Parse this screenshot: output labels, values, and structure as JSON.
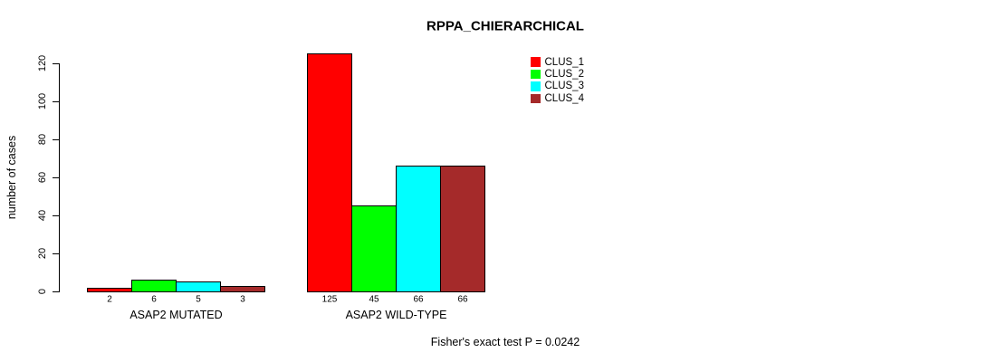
{
  "chart_data": {
    "type": "bar",
    "title": "RPPA_CHIERARCHICAL",
    "ylabel": "number of cases",
    "xlabel": "",
    "ylim": [
      0,
      125
    ],
    "yticks": [
      0,
      20,
      40,
      60,
      80,
      100,
      120
    ],
    "grid": false,
    "legend_position": "top-right",
    "categories": [
      "ASAP2 MUTATED",
      "ASAP2 WILD-TYPE"
    ],
    "series": [
      {
        "name": "CLUS_1",
        "color": "#ff0000",
        "values": [
          2,
          125
        ]
      },
      {
        "name": "CLUS_2",
        "color": "#00ff00",
        "values": [
          6,
          45
        ]
      },
      {
        "name": "CLUS_3",
        "color": "#00ffff",
        "values": [
          5,
          66
        ]
      },
      {
        "name": "CLUS_4",
        "color": "#a52a2a",
        "values": [
          3,
          66
        ]
      }
    ],
    "bar_border_color": "#000000",
    "annotation": "Fisher's exact test P = 0.0242"
  }
}
